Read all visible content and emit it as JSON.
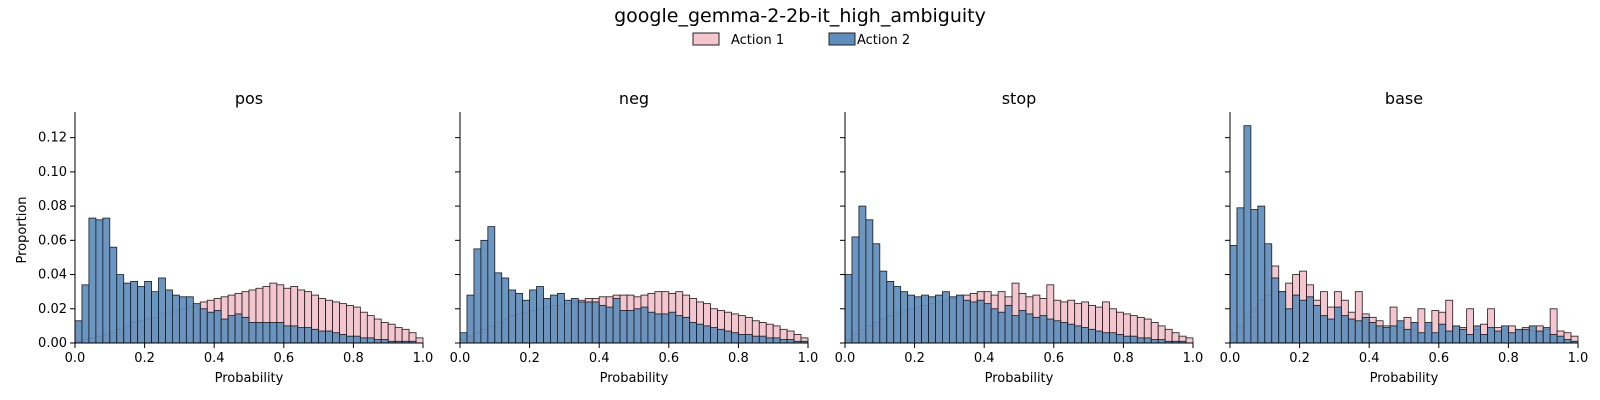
{
  "figure": {
    "title": "google_gemma-2-2b-it_high_ambiguity",
    "legend": {
      "placement": "top-center",
      "items": [
        {
          "label": "Action 1",
          "color": "#f4c6cf"
        },
        {
          "label": "Action 2",
          "color": "#5f8dbd"
        }
      ]
    },
    "shared_y_label": "Proportion",
    "shared_x_label": "Probability"
  },
  "chart_data": [
    {
      "type": "bar",
      "title": "pos",
      "xlabel": "Probability",
      "ylabel": "Proportion",
      "xlim": [
        0,
        1
      ],
      "ylim": [
        0,
        0.135
      ],
      "x_ticks": [
        "0.0",
        "0.2",
        "0.4",
        "0.6",
        "0.8",
        "1.0"
      ],
      "y_ticks": [
        "0.00",
        "0.02",
        "0.04",
        "0.06",
        "0.08",
        "0.10",
        "0.12"
      ],
      "bin_width": 0.02,
      "series": [
        {
          "name": "Action 1",
          "values": [
            0.001,
            0.002,
            0.003,
            0.004,
            0.005,
            0.006,
            0.008,
            0.01,
            0.012,
            0.013,
            0.014,
            0.015,
            0.017,
            0.018,
            0.019,
            0.02,
            0.021,
            0.022,
            0.024,
            0.025,
            0.026,
            0.027,
            0.028,
            0.029,
            0.03,
            0.031,
            0.032,
            0.033,
            0.035,
            0.034,
            0.032,
            0.033,
            0.031,
            0.03,
            0.028,
            0.026,
            0.025,
            0.024,
            0.023,
            0.022,
            0.021,
            0.018,
            0.016,
            0.014,
            0.012,
            0.011,
            0.009,
            0.008,
            0.006,
            0.003
          ]
        },
        {
          "name": "Action 2",
          "values": [
            0.013,
            0.034,
            0.073,
            0.072,
            0.073,
            0.056,
            0.04,
            0.035,
            0.036,
            0.033,
            0.036,
            0.03,
            0.038,
            0.031,
            0.028,
            0.027,
            0.027,
            0.023,
            0.02,
            0.018,
            0.019,
            0.014,
            0.016,
            0.017,
            0.015,
            0.012,
            0.012,
            0.012,
            0.012,
            0.012,
            0.01,
            0.01,
            0.009,
            0.009,
            0.008,
            0.007,
            0.007,
            0.006,
            0.005,
            0.004,
            0.004,
            0.003,
            0.003,
            0.002,
            0.002,
            0.001,
            0.001,
            0.001,
            0.001,
            0.0
          ]
        }
      ]
    },
    {
      "type": "bar",
      "title": "neg",
      "xlabel": "Probability",
      "ylabel": "",
      "xlim": [
        0,
        1
      ],
      "ylim": [
        0,
        0.135
      ],
      "x_ticks": [
        "0.0",
        "0.2",
        "0.4",
        "0.6",
        "0.8",
        "1.0"
      ],
      "y_ticks": [],
      "bin_width": 0.02,
      "series": [
        {
          "name": "Action 1",
          "values": [
            0.002,
            0.004,
            0.006,
            0.008,
            0.01,
            0.012,
            0.014,
            0.016,
            0.017,
            0.018,
            0.019,
            0.02,
            0.021,
            0.022,
            0.022,
            0.023,
            0.024,
            0.025,
            0.026,
            0.026,
            0.027,
            0.027,
            0.028,
            0.028,
            0.028,
            0.027,
            0.028,
            0.029,
            0.03,
            0.03,
            0.029,
            0.03,
            0.028,
            0.026,
            0.024,
            0.023,
            0.02,
            0.019,
            0.018,
            0.017,
            0.016,
            0.015,
            0.013,
            0.012,
            0.011,
            0.01,
            0.008,
            0.007,
            0.005,
            0.003
          ]
        },
        {
          "name": "Action 2",
          "values": [
            0.006,
            0.028,
            0.055,
            0.06,
            0.068,
            0.041,
            0.038,
            0.031,
            0.029,
            0.025,
            0.031,
            0.033,
            0.026,
            0.028,
            0.029,
            0.025,
            0.026,
            0.024,
            0.024,
            0.024,
            0.022,
            0.021,
            0.026,
            0.019,
            0.019,
            0.02,
            0.021,
            0.018,
            0.017,
            0.017,
            0.018,
            0.016,
            0.015,
            0.012,
            0.011,
            0.01,
            0.009,
            0.008,
            0.007,
            0.006,
            0.005,
            0.005,
            0.004,
            0.004,
            0.003,
            0.003,
            0.002,
            0.002,
            0.001,
            0.001
          ]
        }
      ]
    },
    {
      "type": "bar",
      "title": "stop",
      "xlabel": "Probability",
      "ylabel": "",
      "xlim": [
        0,
        1
      ],
      "ylim": [
        0,
        0.135
      ],
      "x_ticks": [
        "0.0",
        "0.2",
        "0.4",
        "0.6",
        "0.8",
        "1.0"
      ],
      "y_ticks": [],
      "bin_width": 0.02,
      "series": [
        {
          "name": "Action 1",
          "values": [
            0.002,
            0.005,
            0.008,
            0.01,
            0.012,
            0.014,
            0.016,
            0.018,
            0.019,
            0.02,
            0.021,
            0.022,
            0.023,
            0.024,
            0.025,
            0.026,
            0.027,
            0.028,
            0.029,
            0.03,
            0.03,
            0.028,
            0.03,
            0.027,
            0.035,
            0.029,
            0.027,
            0.028,
            0.026,
            0.034,
            0.025,
            0.024,
            0.025,
            0.023,
            0.024,
            0.022,
            0.021,
            0.024,
            0.02,
            0.018,
            0.017,
            0.016,
            0.015,
            0.014,
            0.012,
            0.01,
            0.008,
            0.006,
            0.004,
            0.003
          ]
        },
        {
          "name": "Action 2",
          "values": [
            0.04,
            0.062,
            0.08,
            0.072,
            0.058,
            0.042,
            0.036,
            0.033,
            0.03,
            0.028,
            0.027,
            0.028,
            0.027,
            0.028,
            0.03,
            0.027,
            0.028,
            0.025,
            0.024,
            0.025,
            0.023,
            0.02,
            0.018,
            0.022,
            0.016,
            0.019,
            0.017,
            0.015,
            0.016,
            0.014,
            0.013,
            0.012,
            0.011,
            0.01,
            0.009,
            0.008,
            0.007,
            0.006,
            0.006,
            0.005,
            0.004,
            0.004,
            0.003,
            0.003,
            0.002,
            0.002,
            0.001,
            0.001,
            0.001,
            0.0
          ]
        }
      ]
    },
    {
      "type": "bar",
      "title": "base",
      "xlabel": "Probability",
      "ylabel": "",
      "xlim": [
        0,
        1
      ],
      "ylim": [
        0,
        0.135
      ],
      "x_ticks": [
        "0.0",
        "0.2",
        "0.4",
        "0.6",
        "0.8",
        "1.0"
      ],
      "y_ticks": [],
      "bin_width": 0.02,
      "series": [
        {
          "name": "Action 1",
          "values": [
            0.005,
            0.01,
            0.018,
            0.02,
            0.025,
            0.028,
            0.045,
            0.03,
            0.035,
            0.04,
            0.042,
            0.034,
            0.025,
            0.03,
            0.021,
            0.03,
            0.025,
            0.018,
            0.03,
            0.017,
            0.015,
            0.013,
            0.01,
            0.021,
            0.009,
            0.015,
            0.008,
            0.02,
            0.01,
            0.019,
            0.018,
            0.025,
            0.01,
            0.009,
            0.02,
            0.008,
            0.011,
            0.02,
            0.009,
            0.008,
            0.01,
            0.007,
            0.009,
            0.007,
            0.01,
            0.008,
            0.02,
            0.007,
            0.006,
            0.004
          ]
        },
        {
          "name": "Action 2",
          "values": [
            0.057,
            0.079,
            0.127,
            0.078,
            0.08,
            0.058,
            0.038,
            0.03,
            0.02,
            0.028,
            0.025,
            0.027,
            0.022,
            0.016,
            0.014,
            0.021,
            0.016,
            0.014,
            0.013,
            0.015,
            0.012,
            0.01,
            0.009,
            0.01,
            0.013,
            0.008,
            0.012,
            0.006,
            0.012,
            0.006,
            0.011,
            0.007,
            0.01,
            0.008,
            0.005,
            0.01,
            0.005,
            0.009,
            0.007,
            0.01,
            0.006,
            0.008,
            0.008,
            0.01,
            0.007,
            0.009,
            0.005,
            0.004,
            0.002,
            0.001
          ]
        }
      ]
    }
  ]
}
